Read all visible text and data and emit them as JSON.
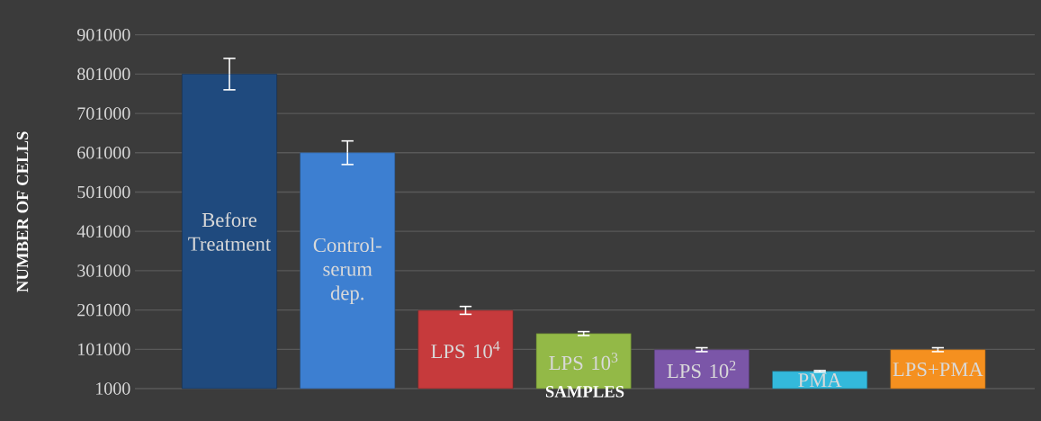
{
  "chart_data": {
    "type": "bar",
    "xlabel": "SAMPLES",
    "ylabel": "NUMBER OF CELLS",
    "categories": [
      "Before Treatment",
      "Control-serum dep.",
      "LPS 10$^{4}$",
      "LPS 10$^{3}$",
      "LPS 10$^{2}$",
      "PMA",
      "LPS+PMA"
    ],
    "values": [
      801000,
      601000,
      200000,
      141000,
      100000,
      45000,
      100000
    ],
    "errors": [
      40000,
      30000,
      10000,
      5000,
      5000,
      2000,
      5000
    ],
    "colors": [
      "#1f4a7e",
      "#3d7fd1",
      "#c63a3c",
      "#93b947",
      "#7b56a8",
      "#33b9dc",
      "#f5901f"
    ],
    "ylim": [
      1000,
      901000
    ],
    "yticks": [
      1000,
      101000,
      201000,
      301000,
      401000,
      501000,
      601000,
      701000,
      801000,
      901000
    ],
    "grid": "y"
  }
}
